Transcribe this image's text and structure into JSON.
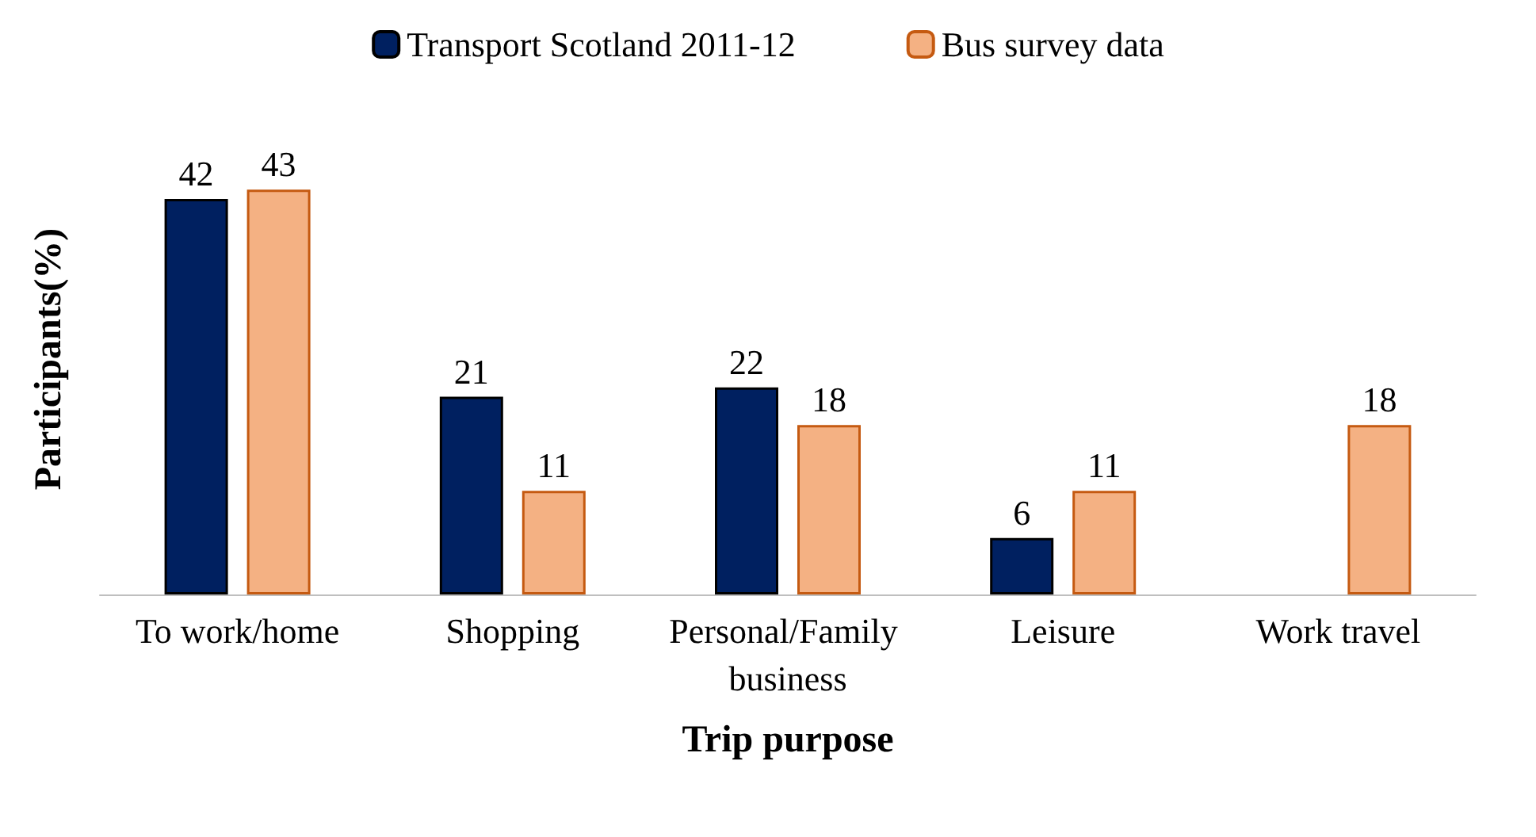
{
  "chart_data": {
    "type": "bar",
    "xlabel": "Trip purpose",
    "ylabel": "Participants(%)",
    "categories": [
      "To work/home",
      "Shopping",
      "Personal/Family business",
      "Leisure",
      "Work travel"
    ],
    "series": [
      {
        "name": "Transport Scotland 2011-12",
        "color": "#002060",
        "values": [
          42,
          21,
          22,
          6,
          null
        ]
      },
      {
        "name": "Bus survey data",
        "color": "#f4b183",
        "values": [
          43,
          11,
          18,
          11,
          18
        ]
      }
    ],
    "data_labels": true,
    "legend": "top",
    "grid": false
  }
}
